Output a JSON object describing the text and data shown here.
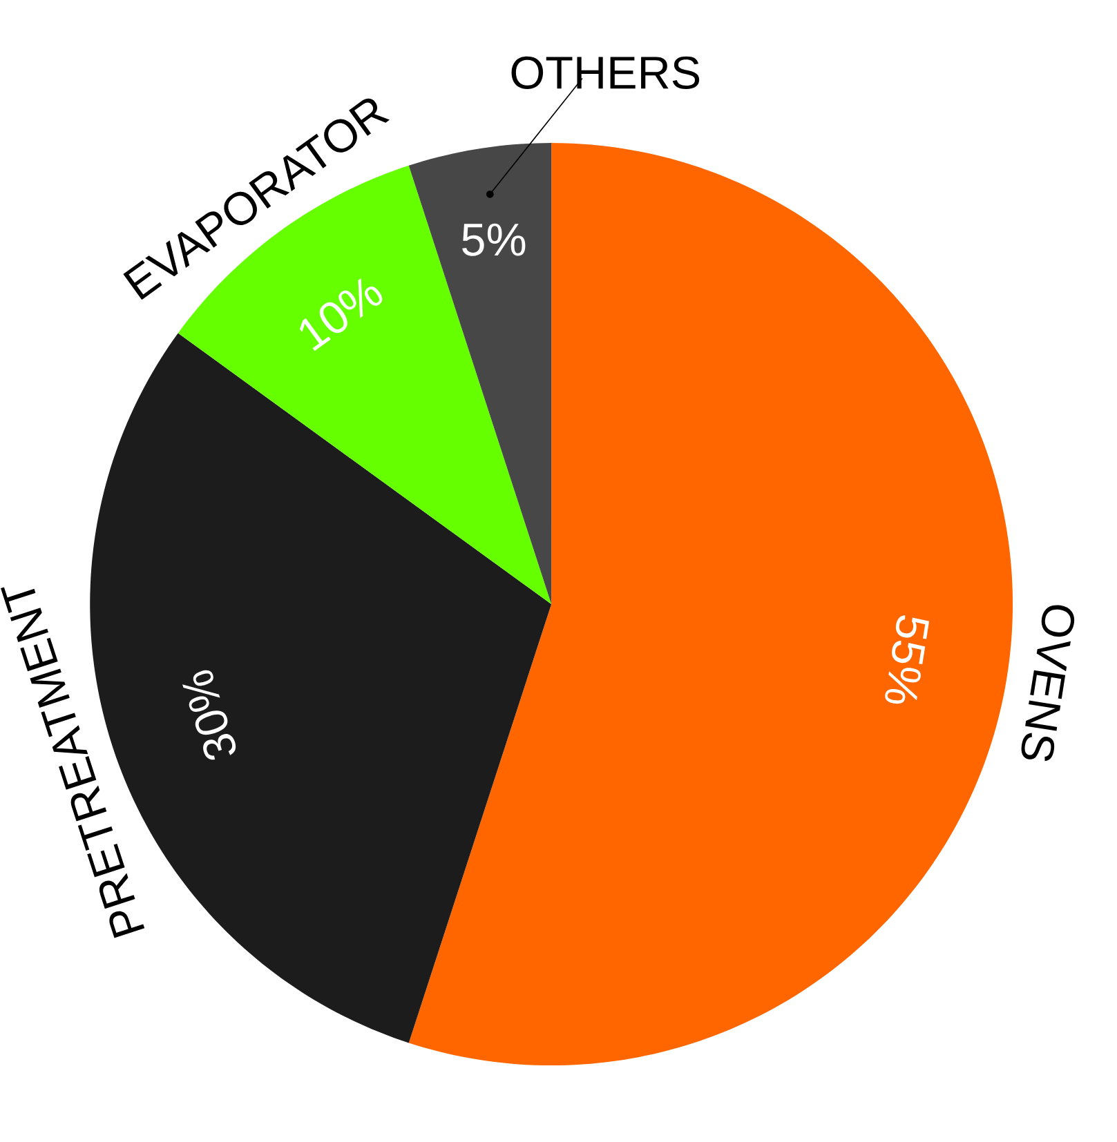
{
  "chart_data": {
    "type": "pie",
    "categories": [
      "OVENS",
      "PRETREATMENT",
      "EVAPORATOR",
      "OTHERS"
    ],
    "values": [
      55,
      30,
      10,
      5
    ],
    "value_labels": [
      "55%",
      "30%",
      "10%",
      "5%"
    ],
    "colors": [
      "#ff6600",
      "#1c1c1c",
      "#66ff00",
      "#474747"
    ]
  }
}
